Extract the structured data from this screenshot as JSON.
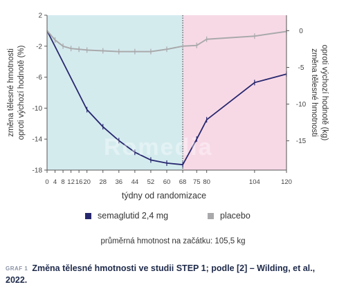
{
  "chart_data": {
    "type": "line",
    "x": [
      0,
      4,
      8,
      12,
      16,
      20,
      28,
      36,
      44,
      52,
      60,
      68,
      75,
      80,
      104,
      120
    ],
    "x_ticks": [
      0,
      4,
      8,
      12,
      16,
      20,
      28,
      36,
      44,
      52,
      60,
      68,
      75,
      80,
      104,
      120
    ],
    "xlabel": "týdny od randomizace",
    "xlim": [
      0,
      120
    ],
    "left_axis": {
      "label_line1": "změna tělesné hmotnosti",
      "label_line2": "oproti výchozí hodnotě (%)",
      "ticks": [
        2,
        -2,
        -6,
        -10,
        -14,
        -18
      ],
      "ylim": [
        -18,
        2
      ]
    },
    "right_axis": {
      "label_line1": "změna tělesné hmotnosti",
      "label_line2": "oproti výchozí hodnotě (kg)",
      "ticks": [
        0,
        -5,
        -10,
        -15
      ]
    },
    "treatment_end_week": 68,
    "series": [
      {
        "name": "semaglutid 2,4 mg",
        "color": "#27276e",
        "x": [
          0,
          20,
          28,
          36,
          44,
          52,
          60,
          68,
          75,
          80,
          104,
          120
        ],
        "values": [
          0,
          -10.2,
          -12.4,
          -14.2,
          -15.7,
          -16.7,
          -17.1,
          -17.3,
          -14,
          -11.5,
          -6.7,
          -5.6
        ]
      },
      {
        "name": "placebo",
        "color": "#a9a9ab",
        "x": [
          0,
          4,
          8,
          12,
          16,
          20,
          28,
          36,
          44,
          52,
          60,
          68,
          75,
          80,
          104,
          120
        ],
        "values": [
          0,
          -1.2,
          -2,
          -2.3,
          -2.4,
          -2.5,
          -2.6,
          -2.7,
          -2.7,
          -2.7,
          -2.4,
          -2,
          -1.9,
          -1.1,
          -0.7,
          -0.1
        ]
      }
    ],
    "colors": {
      "treatment_background": "#d4ebee",
      "off_treatment_background": "#f7d9e6"
    }
  },
  "legend": {
    "semaglutide": "semaglutid 2,4 mg",
    "placebo": "placebo"
  },
  "baseline_note": "průměrná hmotnost na začátku: 105,5 kg",
  "caption": {
    "tag": "GRAF 1",
    "text": "Změna tělesné hmotnosti ve studii STEP 1; podle [2] – Wilding, et al., 2022."
  },
  "watermark": "Romedia"
}
